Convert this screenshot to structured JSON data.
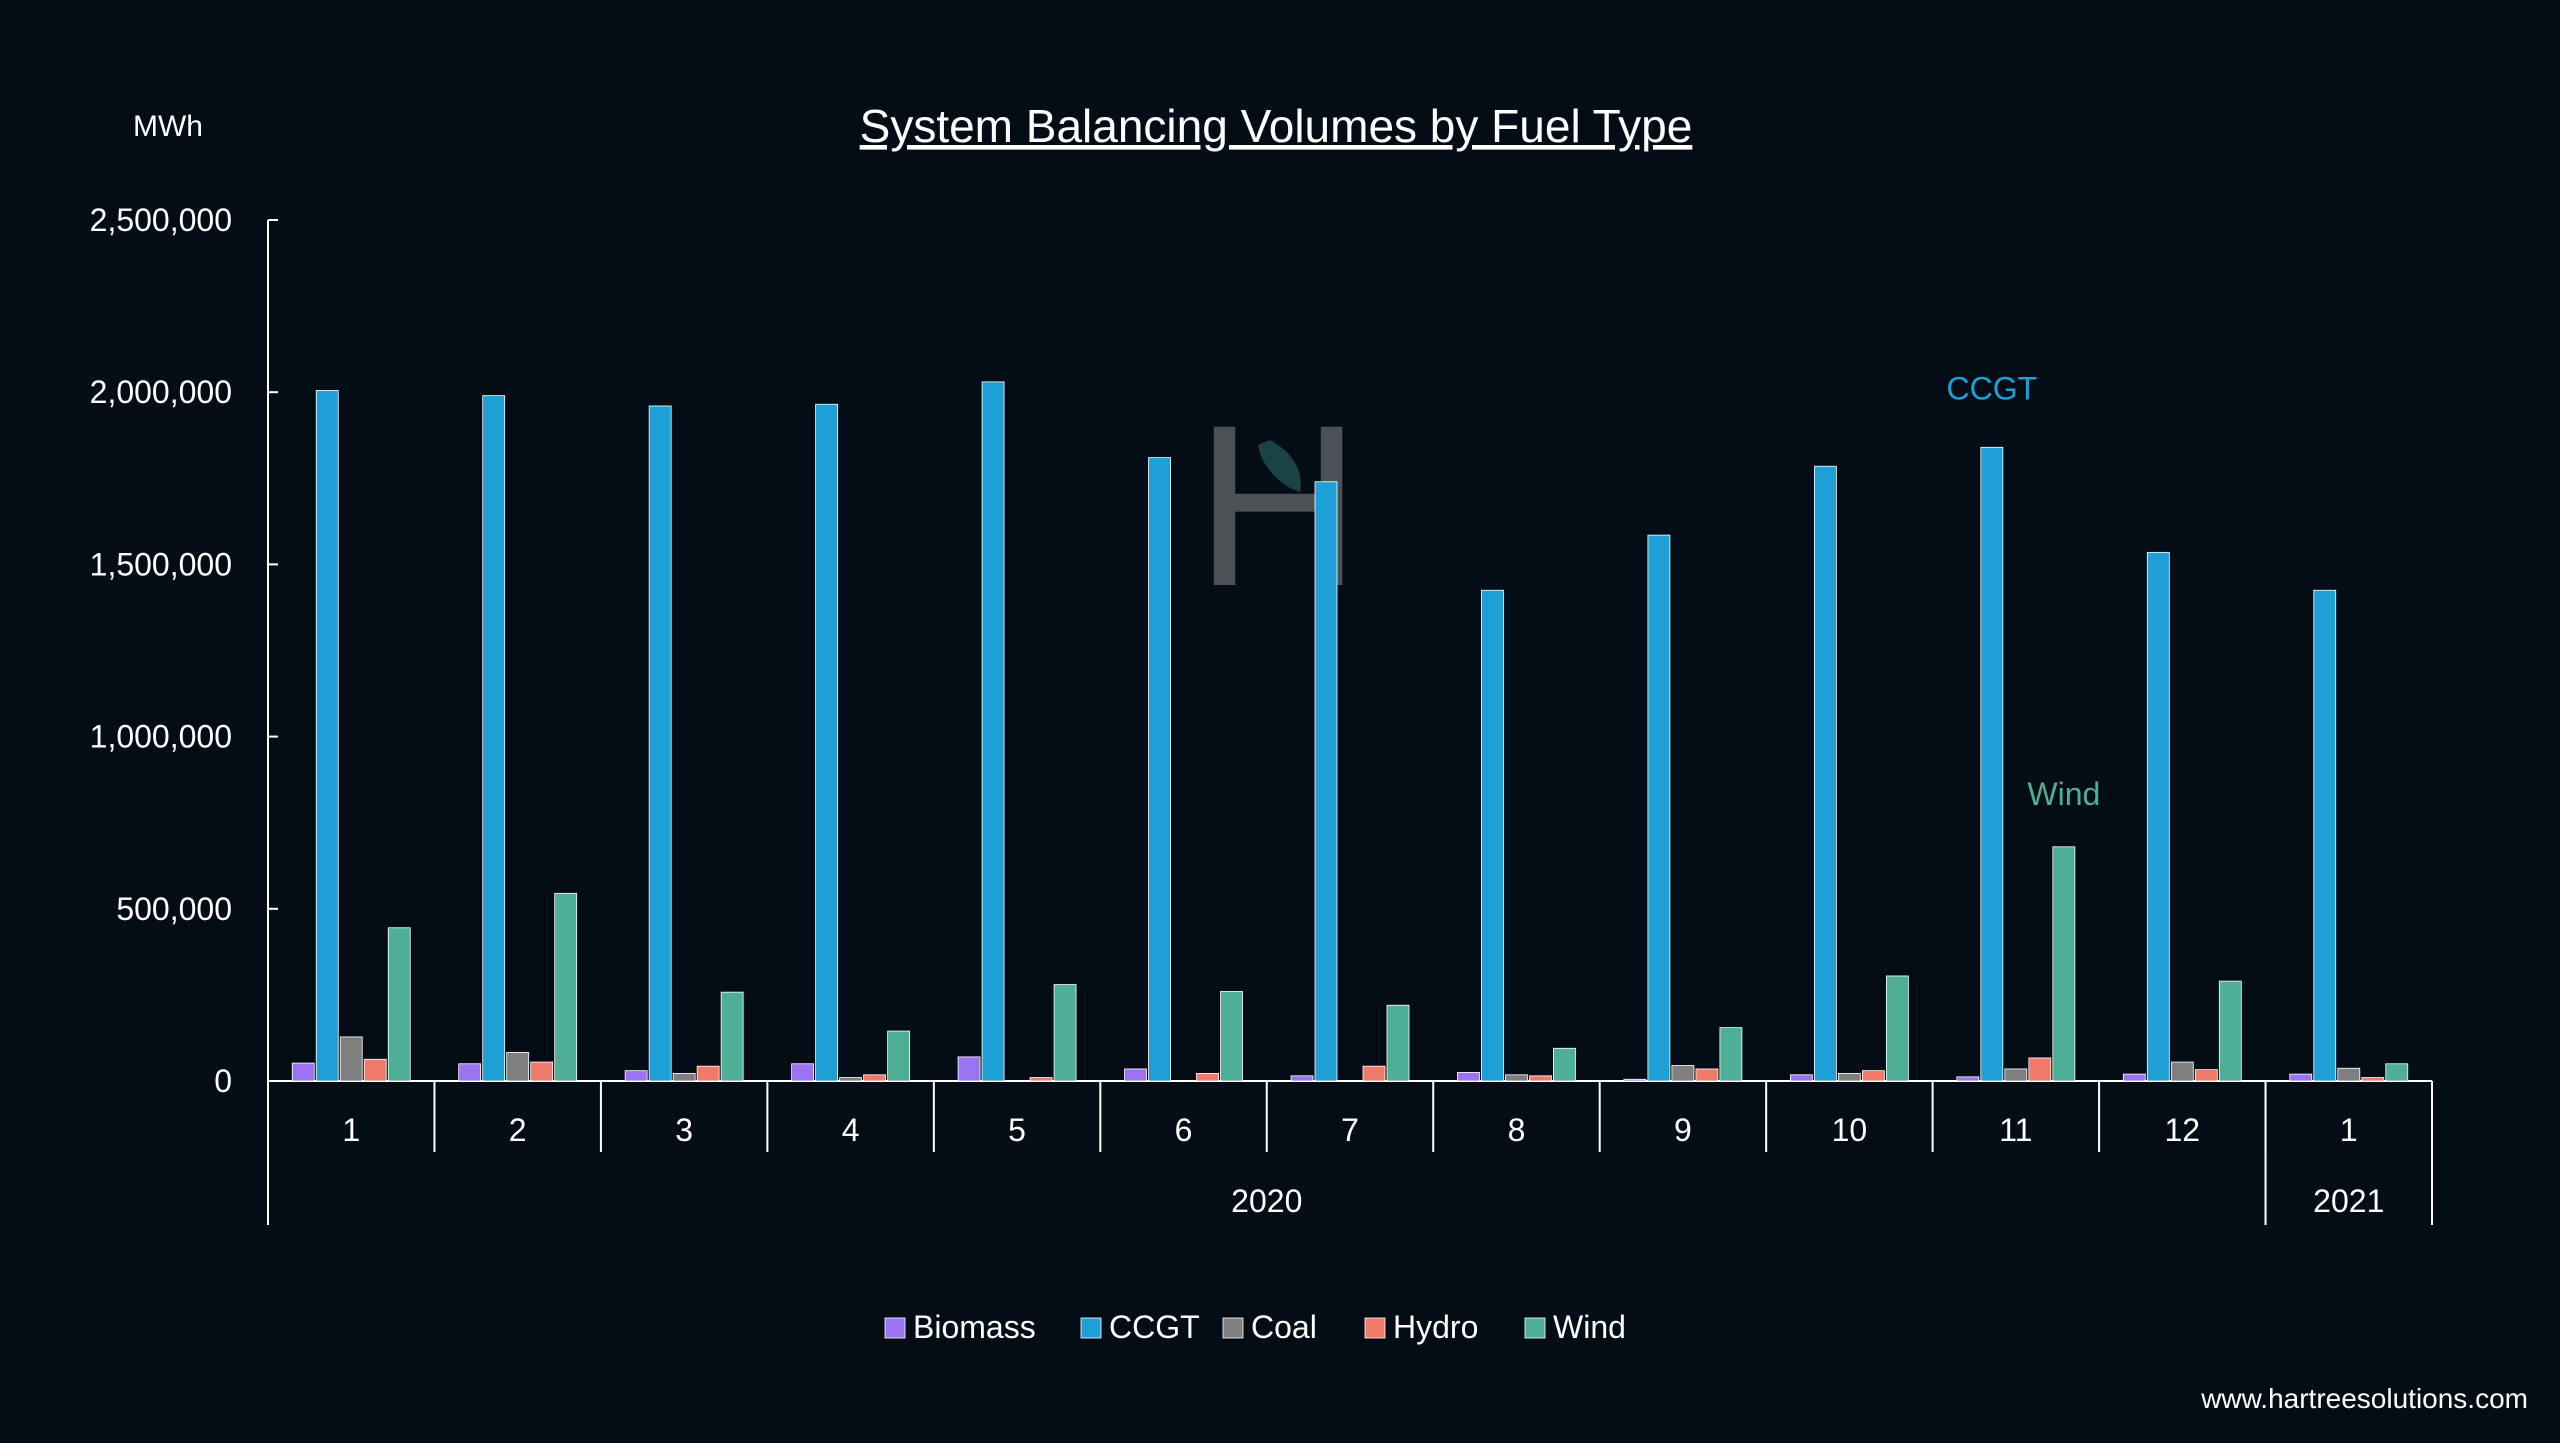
{
  "chart_data": {
    "type": "bar",
    "title": "System Balancing Volumes by Fuel Type",
    "ylabel": "MWh",
    "xlabel": "",
    "ylim": [
      0,
      2500000
    ],
    "yticks": [
      0,
      500000,
      1000000,
      1500000,
      2000000,
      2500000
    ],
    "ytick_labels": [
      "0",
      "500,000",
      "1,000,000",
      "1,500,000",
      "2,000,000",
      "2,500,000"
    ],
    "categories": [
      "1",
      "2",
      "3",
      "4",
      "5",
      "6",
      "7",
      "8",
      "9",
      "10",
      "11",
      "12",
      "1"
    ],
    "year_groups": [
      {
        "label": "2020",
        "count": 12
      },
      {
        "label": "2021",
        "count": 1
      }
    ],
    "series": [
      {
        "name": "Biomass",
        "color": "#9b72f0",
        "values": [
          52000,
          50000,
          30000,
          50000,
          70000,
          35000,
          15000,
          25000,
          5000,
          18000,
          12000,
          20000,
          20000
        ]
      },
      {
        "name": "CCGT",
        "color": "#1ea0d6",
        "values": [
          2005000,
          1990000,
          1960000,
          1965000,
          2030000,
          1810000,
          1740000,
          1425000,
          1585000,
          1785000,
          1840000,
          1535000,
          1425000
        ]
      },
      {
        "name": "Coal",
        "color": "#7f7f7f",
        "values": [
          128000,
          83000,
          22000,
          10000,
          0,
          0,
          0,
          18000,
          45000,
          22000,
          35000,
          55000,
          37000
        ]
      },
      {
        "name": "Hydro",
        "color": "#f07a6a",
        "values": [
          63000,
          55000,
          43000,
          18000,
          10000,
          22000,
          43000,
          15000,
          35000,
          30000,
          67000,
          33000,
          10000
        ]
      },
      {
        "name": "Wind",
        "color": "#4fae96",
        "values": [
          445000,
          545000,
          258000,
          145000,
          280000,
          260000,
          220000,
          95000,
          155000,
          305000,
          680000,
          290000,
          50000
        ]
      }
    ],
    "annotations": [
      {
        "text": "CCGT",
        "color": "#1ea0d6"
      },
      {
        "text": "Wind",
        "color": "#4fae96"
      }
    ],
    "legend_position": "bottom-center",
    "grid": false
  },
  "footer": {
    "website": "www.hartreesolutions.com"
  },
  "watermark": {
    "letter": "H"
  }
}
